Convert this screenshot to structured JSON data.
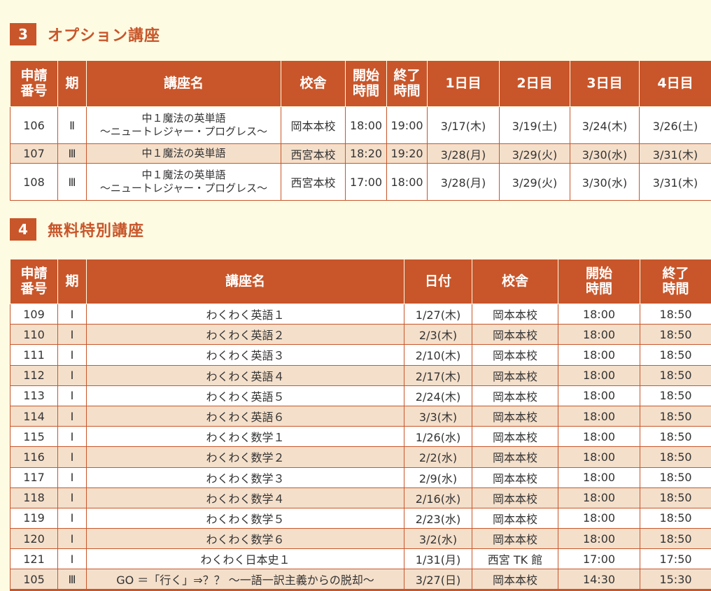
{
  "section3": {
    "number": "3",
    "title": "オプション講座",
    "headers": [
      "申請\n番号",
      "期",
      "講座名",
      "校舎",
      "開始\n時間",
      "終了\n時間",
      "1日目",
      "2日目",
      "3日目",
      "4日目"
    ],
    "rows": [
      {
        "no": "106",
        "term": "Ⅱ",
        "name1": "中１魔法の英単語",
        "name2": "〜ニュートレジャー・プログレス〜",
        "school": "岡本本校",
        "start": "18:00",
        "end": "19:00",
        "d1": "3/17(木)",
        "d2": "3/19(土)",
        "d3": "3/24(木)",
        "d4": "3/26(土)"
      },
      {
        "no": "107",
        "term": "Ⅲ",
        "name1": "中１魔法の英単語",
        "name2": "",
        "school": "西宮本校",
        "start": "18:20",
        "end": "19:20",
        "d1": "3/28(月)",
        "d2": "3/29(火)",
        "d3": "3/30(水)",
        "d4": "3/31(木)"
      },
      {
        "no": "108",
        "term": "Ⅲ",
        "name1": "中１魔法の英単語",
        "name2": "〜ニュートレジャー・プログレス〜",
        "school": "西宮本校",
        "start": "17:00",
        "end": "18:00",
        "d1": "3/28(月)",
        "d2": "3/29(火)",
        "d3": "3/30(水)",
        "d4": "3/31(木)"
      }
    ]
  },
  "section4": {
    "number": "4",
    "title": "無料特別講座",
    "headers": [
      "申請\n番号",
      "期",
      "講座名",
      "日付",
      "校舎",
      "開始\n時間",
      "終了\n時間"
    ],
    "rows": [
      {
        "no": "109",
        "term": "Ⅰ",
        "name": "わくわく英語１",
        "date": "1/27(木)",
        "school": "岡本本校",
        "start": "18:00",
        "end": "18:50"
      },
      {
        "no": "110",
        "term": "Ⅰ",
        "name": "わくわく英語２",
        "date": "2/3(木)",
        "school": "岡本本校",
        "start": "18:00",
        "end": "18:50"
      },
      {
        "no": "111",
        "term": "Ⅰ",
        "name": "わくわく英語３",
        "date": "2/10(木)",
        "school": "岡本本校",
        "start": "18:00",
        "end": "18:50"
      },
      {
        "no": "112",
        "term": "Ⅰ",
        "name": "わくわく英語４",
        "date": "2/17(木)",
        "school": "岡本本校",
        "start": "18:00",
        "end": "18:50"
      },
      {
        "no": "113",
        "term": "Ⅰ",
        "name": "わくわく英語５",
        "date": "2/24(木)",
        "school": "岡本本校",
        "start": "18:00",
        "end": "18:50"
      },
      {
        "no": "114",
        "term": "Ⅰ",
        "name": "わくわく英語６",
        "date": "3/3(木)",
        "school": "岡本本校",
        "start": "18:00",
        "end": "18:50"
      },
      {
        "no": "115",
        "term": "Ⅰ",
        "name": "わくわく数学１",
        "date": "1/26(水)",
        "school": "岡本本校",
        "start": "18:00",
        "end": "18:50"
      },
      {
        "no": "116",
        "term": "Ⅰ",
        "name": "わくわく数学２",
        "date": "2/2(水)",
        "school": "岡本本校",
        "start": "18:00",
        "end": "18:50"
      },
      {
        "no": "117",
        "term": "Ⅰ",
        "name": "わくわく数学３",
        "date": "2/9(水)",
        "school": "岡本本校",
        "start": "18:00",
        "end": "18:50"
      },
      {
        "no": "118",
        "term": "Ⅰ",
        "name": "わくわく数学４",
        "date": "2/16(水)",
        "school": "岡本本校",
        "start": "18:00",
        "end": "18:50"
      },
      {
        "no": "119",
        "term": "Ⅰ",
        "name": "わくわく数学５",
        "date": "2/23(水)",
        "school": "岡本本校",
        "start": "18:00",
        "end": "18:50"
      },
      {
        "no": "120",
        "term": "Ⅰ",
        "name": "わくわく数学６",
        "date": "3/2(水)",
        "school": "岡本本校",
        "start": "18:00",
        "end": "18:50"
      },
      {
        "no": "121",
        "term": "Ⅰ",
        "name": "わくわく日本史１",
        "date": "1/31(月)",
        "school": "西宮 TK 館",
        "start": "17:00",
        "end": "17:50"
      },
      {
        "no": "105",
        "term": "Ⅲ",
        "name": "GO ＝「行く」⇒？？ 〜一語一訳主義からの脱却〜",
        "date": "3/27(日)",
        "school": "岡本本校",
        "start": "14:30",
        "end": "15:30"
      }
    ]
  }
}
